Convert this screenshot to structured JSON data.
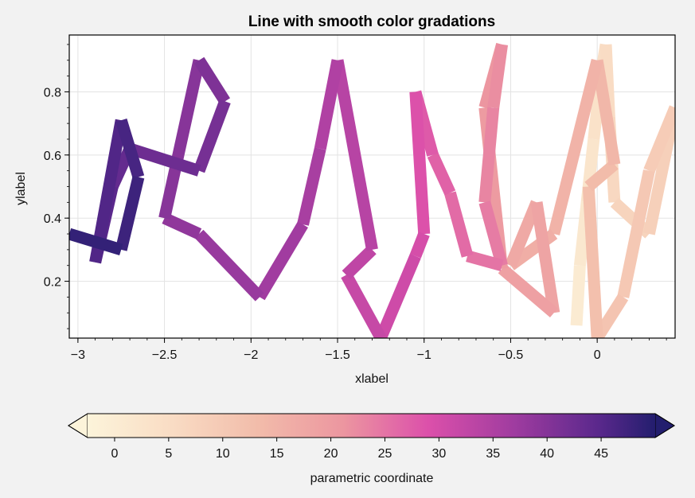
{
  "chart_data": {
    "type": "line",
    "title": "Line with smooth color gradations",
    "xlabel": "xlabel",
    "ylabel": "ylabel",
    "xlim": [
      -3.05,
      0.45
    ],
    "ylim": [
      0.02,
      0.98
    ],
    "xticks": [
      -3,
      -2.5,
      -2,
      -1.5,
      -1,
      -0.5,
      0
    ],
    "xtick_labels": [
      "−3",
      "−2.5",
      "−2",
      "−1.5",
      "−1",
      "−0.5",
      "0"
    ],
    "yticks": [
      0.2,
      0.4,
      0.6,
      0.8
    ],
    "ytick_labels": [
      "0.2",
      "0.4",
      "0.6",
      "0.8"
    ],
    "grid": true,
    "colormap": "magma_r",
    "colorbar": {
      "label": "parametric coordinate",
      "range": [
        -2.5,
        50
      ],
      "ticks": [
        0,
        5,
        10,
        15,
        20,
        25,
        30,
        35,
        40,
        45
      ],
      "tick_labels": [
        "0",
        "5",
        "10",
        "15",
        "20",
        "25",
        "30",
        "35",
        "40",
        "45"
      ],
      "extend": "both",
      "orientation": "horizontal"
    },
    "series": [
      {
        "x": [
          -0.12,
          -0.1,
          -0.06,
          -0.02,
          0.02,
          0.05,
          0.07,
          0.1,
          0.3,
          0.45,
          0.3,
          0.15,
          0.0,
          -0.05,
          0.1,
          0.0,
          -0.25,
          -0.5,
          -0.35,
          -0.25,
          -0.55,
          -0.65,
          -0.55,
          -0.6,
          -0.65,
          -0.55,
          -0.75,
          -0.85,
          -0.95,
          -1.05,
          -1.0,
          -1.05,
          -1.25,
          -1.45,
          -1.3,
          -1.5,
          -1.6,
          -1.7,
          -1.95,
          -2.3,
          -2.5,
          -2.3,
          -2.15,
          -2.3,
          -2.7,
          -2.8,
          -2.9,
          -2.75,
          -2.65,
          -2.75,
          -3.05
        ],
        "y": [
          0.06,
          0.25,
          0.45,
          0.65,
          0.85,
          0.95,
          0.72,
          0.45,
          0.35,
          0.75,
          0.55,
          0.15,
          0.02,
          0.5,
          0.57,
          0.9,
          0.35,
          0.25,
          0.45,
          0.1,
          0.24,
          0.75,
          0.95,
          0.75,
          0.45,
          0.25,
          0.28,
          0.48,
          0.6,
          0.8,
          0.35,
          0.28,
          0.02,
          0.22,
          0.3,
          0.9,
          0.62,
          0.38,
          0.15,
          0.35,
          0.4,
          0.9,
          0.77,
          0.55,
          0.62,
          0.5,
          0.26,
          0.71,
          0.53,
          0.3,
          0.35
        ]
      }
    ]
  }
}
